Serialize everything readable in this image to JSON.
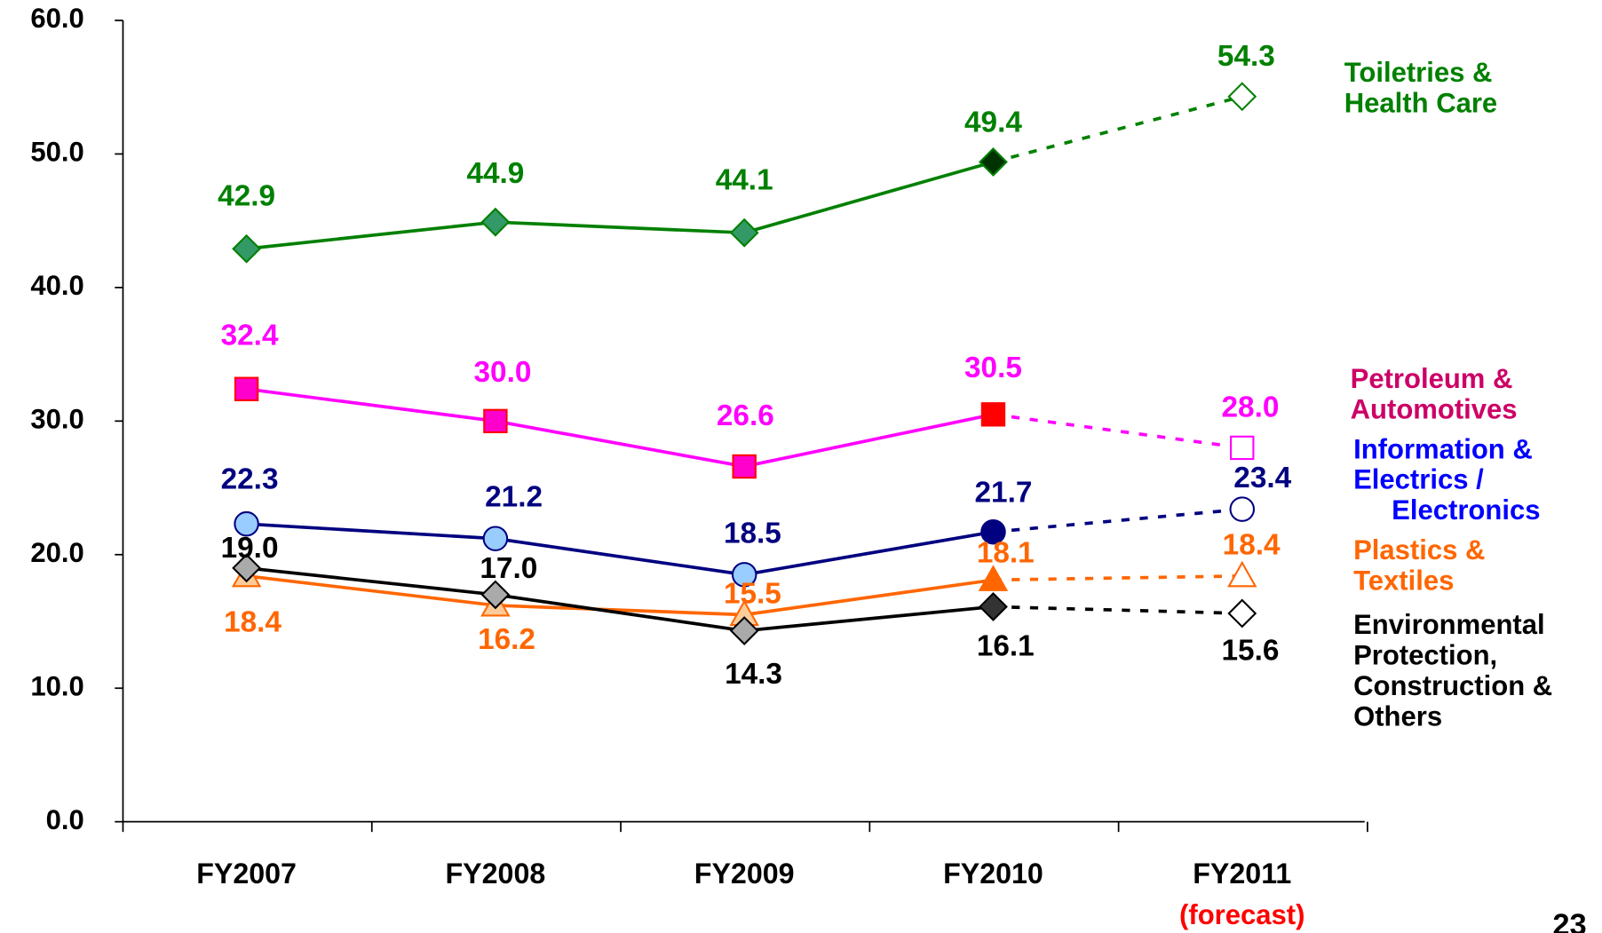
{
  "chart_data": {
    "type": "line",
    "categories": [
      "FY2007",
      "FY2008",
      "FY2009",
      "FY2010",
      "FY2011"
    ],
    "annotation": "(forecast)",
    "page_number": "23",
    "ylim": [
      0,
      60
    ],
    "yticks": [
      {
        "value": 0,
        "label": "0.0"
      },
      {
        "value": 10,
        "label": "10.0"
      },
      {
        "value": 20,
        "label": "20.0"
      },
      {
        "value": 30,
        "label": "30.0"
      },
      {
        "value": 40,
        "label": "40.0"
      },
      {
        "value": 50,
        "label": "50.0"
      },
      {
        "value": 60,
        "label": "60.0"
      }
    ],
    "series": [
      {
        "name": "Toiletries &\nHealth Care",
        "color": "#008000",
        "label_color": "#008000",
        "marker": "diamond",
        "marker_fill": "#339966",
        "highlight_fill": "#003300",
        "values": [
          42.9,
          44.9,
          44.1,
          49.4,
          54.3
        ],
        "value_labels": [
          "42.9",
          "44.9",
          "44.1",
          "49.4",
          "54.3"
        ]
      },
      {
        "name": "Petroleum &\nAutomotives",
        "color": "#ff00ff",
        "label_color": "#cc0066",
        "marker": "square",
        "marker_fill": "#ff00cc",
        "highlight_fill": "#ff0000",
        "values": [
          32.4,
          30.0,
          26.6,
          30.5,
          28.0
        ],
        "value_labels": [
          "32.4",
          "30.0",
          "26.6",
          "30.5",
          "28.0"
        ]
      },
      {
        "name": "Information &\nElectrics /\n     Electronics",
        "color": "#000080",
        "label_color": "#0000ff",
        "marker": "circle",
        "marker_fill": "#99ccff",
        "highlight_fill": "#000080",
        "values": [
          22.3,
          21.2,
          18.5,
          21.7,
          23.4
        ],
        "value_labels": [
          "22.3",
          "21.2",
          "18.5",
          "21.7",
          "23.4"
        ]
      },
      {
        "name": "Plastics &\nTextiles",
        "color": "#ff6600",
        "label_color": "#ff6600",
        "marker": "triangle",
        "marker_fill": "#ffcc99",
        "highlight_fill": "#ff6600",
        "values": [
          18.4,
          16.2,
          15.5,
          18.1,
          18.4
        ],
        "value_labels": [
          "18.4",
          "16.2",
          "15.5",
          "18.1",
          "18.4"
        ]
      },
      {
        "name": "Environmental\nProtection,\nConstruction &\nOthers",
        "color": "#000000",
        "label_color": "#000000",
        "marker": "diamond",
        "marker_fill": "#aaaaaa",
        "highlight_fill": "#333333",
        "values": [
          19.0,
          17.0,
          14.3,
          16.1,
          15.6
        ],
        "value_labels": [
          "19.0",
          "17.0",
          "14.3",
          "16.1",
          "15.6"
        ]
      }
    ]
  }
}
